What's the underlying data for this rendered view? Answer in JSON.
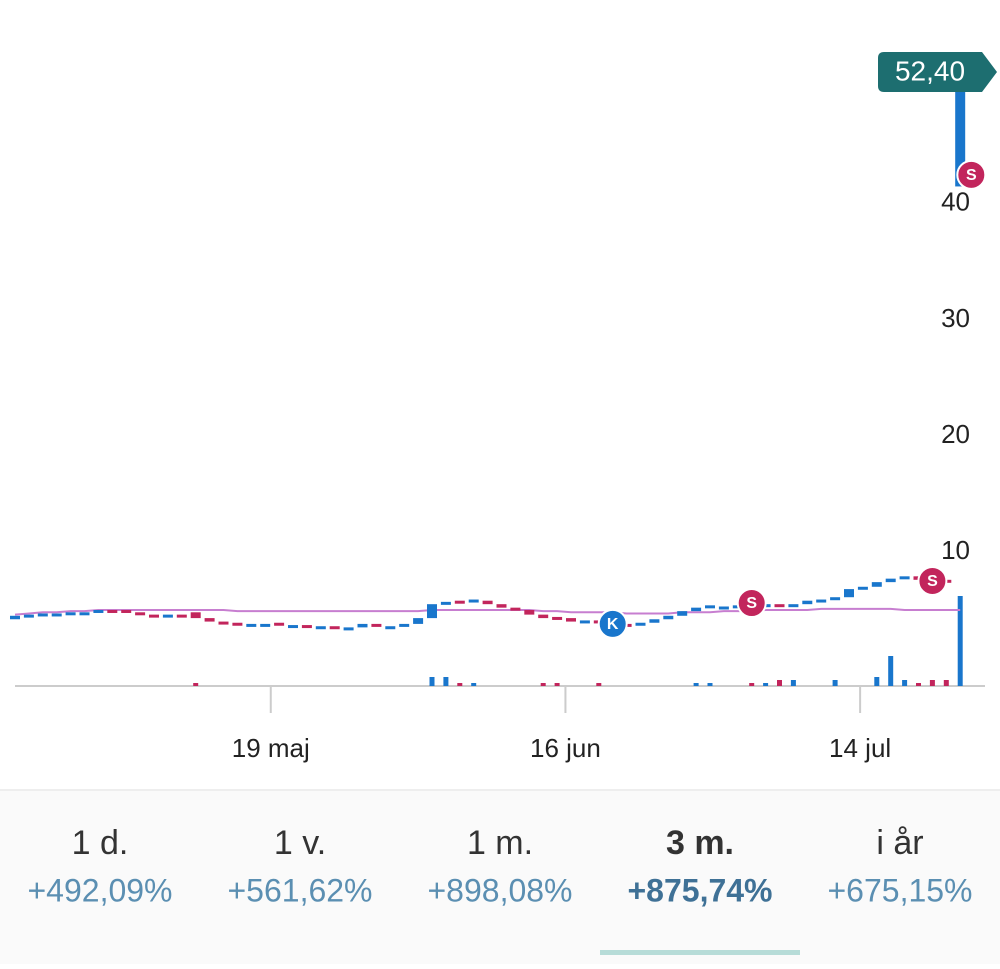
{
  "chart_data": {
    "type": "candlestick",
    "open": [
      4.2,
      4.5,
      4.6,
      4.7,
      4.7,
      4.8,
      4.8,
      5.0,
      5.0,
      4.8,
      4.6,
      4.5,
      4.6,
      4.8,
      4.3,
      4.0,
      3.9,
      3.8,
      3.8,
      3.9,
      3.7,
      3.7,
      3.6,
      3.6,
      3.5,
      3.5,
      3.8,
      3.6,
      3.6,
      3.8,
      4.3,
      5.5,
      5.8,
      5.7,
      5.8,
      5.5,
      5.2,
      5.0,
      4.6,
      4.4,
      4.3,
      4.0,
      4.1,
      4.0,
      3.8,
      3.7,
      3.9,
      4.2,
      4.5,
      4.9,
      5.2,
      5.3,
      5.3,
      5.6,
      5.3,
      5.5,
      5.3,
      5.5,
      5.8,
      5.9,
      6.1,
      6.8,
      7.0,
      7.4,
      7.7,
      7.9,
      7.7,
      7.6,
      41.5
    ],
    "close": [
      4.5,
      4.6,
      4.7,
      4.7,
      4.8,
      4.8,
      5.0,
      4.9,
      4.8,
      4.6,
      4.5,
      4.6,
      4.5,
      4.3,
      4.0,
      3.9,
      3.8,
      3.8,
      3.8,
      3.7,
      3.7,
      3.6,
      3.6,
      3.5,
      3.5,
      3.8,
      3.6,
      3.6,
      3.8,
      4.3,
      5.5,
      5.7,
      5.6,
      5.9,
      5.5,
      5.2,
      5.0,
      4.6,
      4.3,
      4.2,
      4.0,
      4.1,
      4.0,
      3.8,
      3.7,
      3.9,
      4.2,
      4.5,
      4.9,
      5.2,
      5.4,
      5.3,
      5.4,
      5.3,
      5.5,
      5.3,
      5.5,
      5.8,
      5.9,
      6.1,
      6.8,
      7.0,
      7.4,
      7.7,
      7.9,
      7.6,
      7.6,
      7.5,
      52.4
    ],
    "ma": [
      4.6,
      4.7,
      4.8,
      4.8,
      4.9,
      4.9,
      5.0,
      5.0,
      5.0,
      5.0,
      5.0,
      5.0,
      5.0,
      5.0,
      5.0,
      5.0,
      4.9,
      4.9,
      4.9,
      4.9,
      4.9,
      4.9,
      4.9,
      4.9,
      4.9,
      4.9,
      4.9,
      4.9,
      4.9,
      4.9,
      5.0,
      5.0,
      5.0,
      5.0,
      5.0,
      5.0,
      5.0,
      5.0,
      4.9,
      4.9,
      4.8,
      4.8,
      4.8,
      4.8,
      4.7,
      4.7,
      4.7,
      4.7,
      4.8,
      4.8,
      4.8,
      4.9,
      4.9,
      4.9,
      5.0,
      5.0,
      5.0,
      5.0,
      5.1,
      5.1,
      5.1,
      5.1,
      5.1,
      5.1,
      5.0,
      5.0,
      5.0,
      5.0,
      5.0
    ],
    "volume": [
      0,
      0,
      0,
      0,
      0,
      0,
      0,
      0,
      0,
      0,
      0,
      0,
      0,
      1,
      0,
      0,
      0,
      0,
      0,
      0,
      0,
      0,
      0,
      0,
      0,
      0,
      0,
      0,
      0,
      0,
      3,
      3,
      1,
      1,
      0,
      0,
      0,
      0,
      1,
      1,
      0,
      0,
      1,
      0,
      0,
      0,
      0,
      0,
      0,
      1,
      1,
      0,
      0,
      1,
      1,
      2,
      2,
      0,
      0,
      2,
      0,
      0,
      3,
      10,
      2,
      1,
      2,
      2,
      30
    ],
    "ylim": [
      0,
      53
    ],
    "yticks": [
      10,
      20,
      30,
      40
    ],
    "xticks": [
      {
        "value": 18.4,
        "label": "19 maj"
      },
      {
        "value": 39.6,
        "label": "16 jun"
      },
      {
        "value": 60.8,
        "label": "14 jul"
      }
    ],
    "up_color": "#1976cc",
    "down_color": "#c2255c",
    "ma_color": "#c77ed0",
    "markers": [
      {
        "label": "K",
        "index": 43,
        "value": 3.8
      },
      {
        "label": "S",
        "index": 53,
        "value": 5.6
      },
      {
        "label": "S",
        "index": 66,
        "value": 7.5
      },
      {
        "label": "S",
        "index": 68.8,
        "value": 42.5
      }
    ],
    "last_price": {
      "value": 52.4,
      "label": "52,40"
    }
  },
  "periods": [
    {
      "label": "1 d.",
      "change": "+492,09%"
    },
    {
      "label": "1 v.",
      "change": "+561,62%"
    },
    {
      "label": "1 m.",
      "change": "+898,08%"
    },
    {
      "label": "3 m.",
      "change": "+875,74%"
    },
    {
      "label": "i år",
      "change": "+675,15%"
    }
  ],
  "selected_period": 3
}
